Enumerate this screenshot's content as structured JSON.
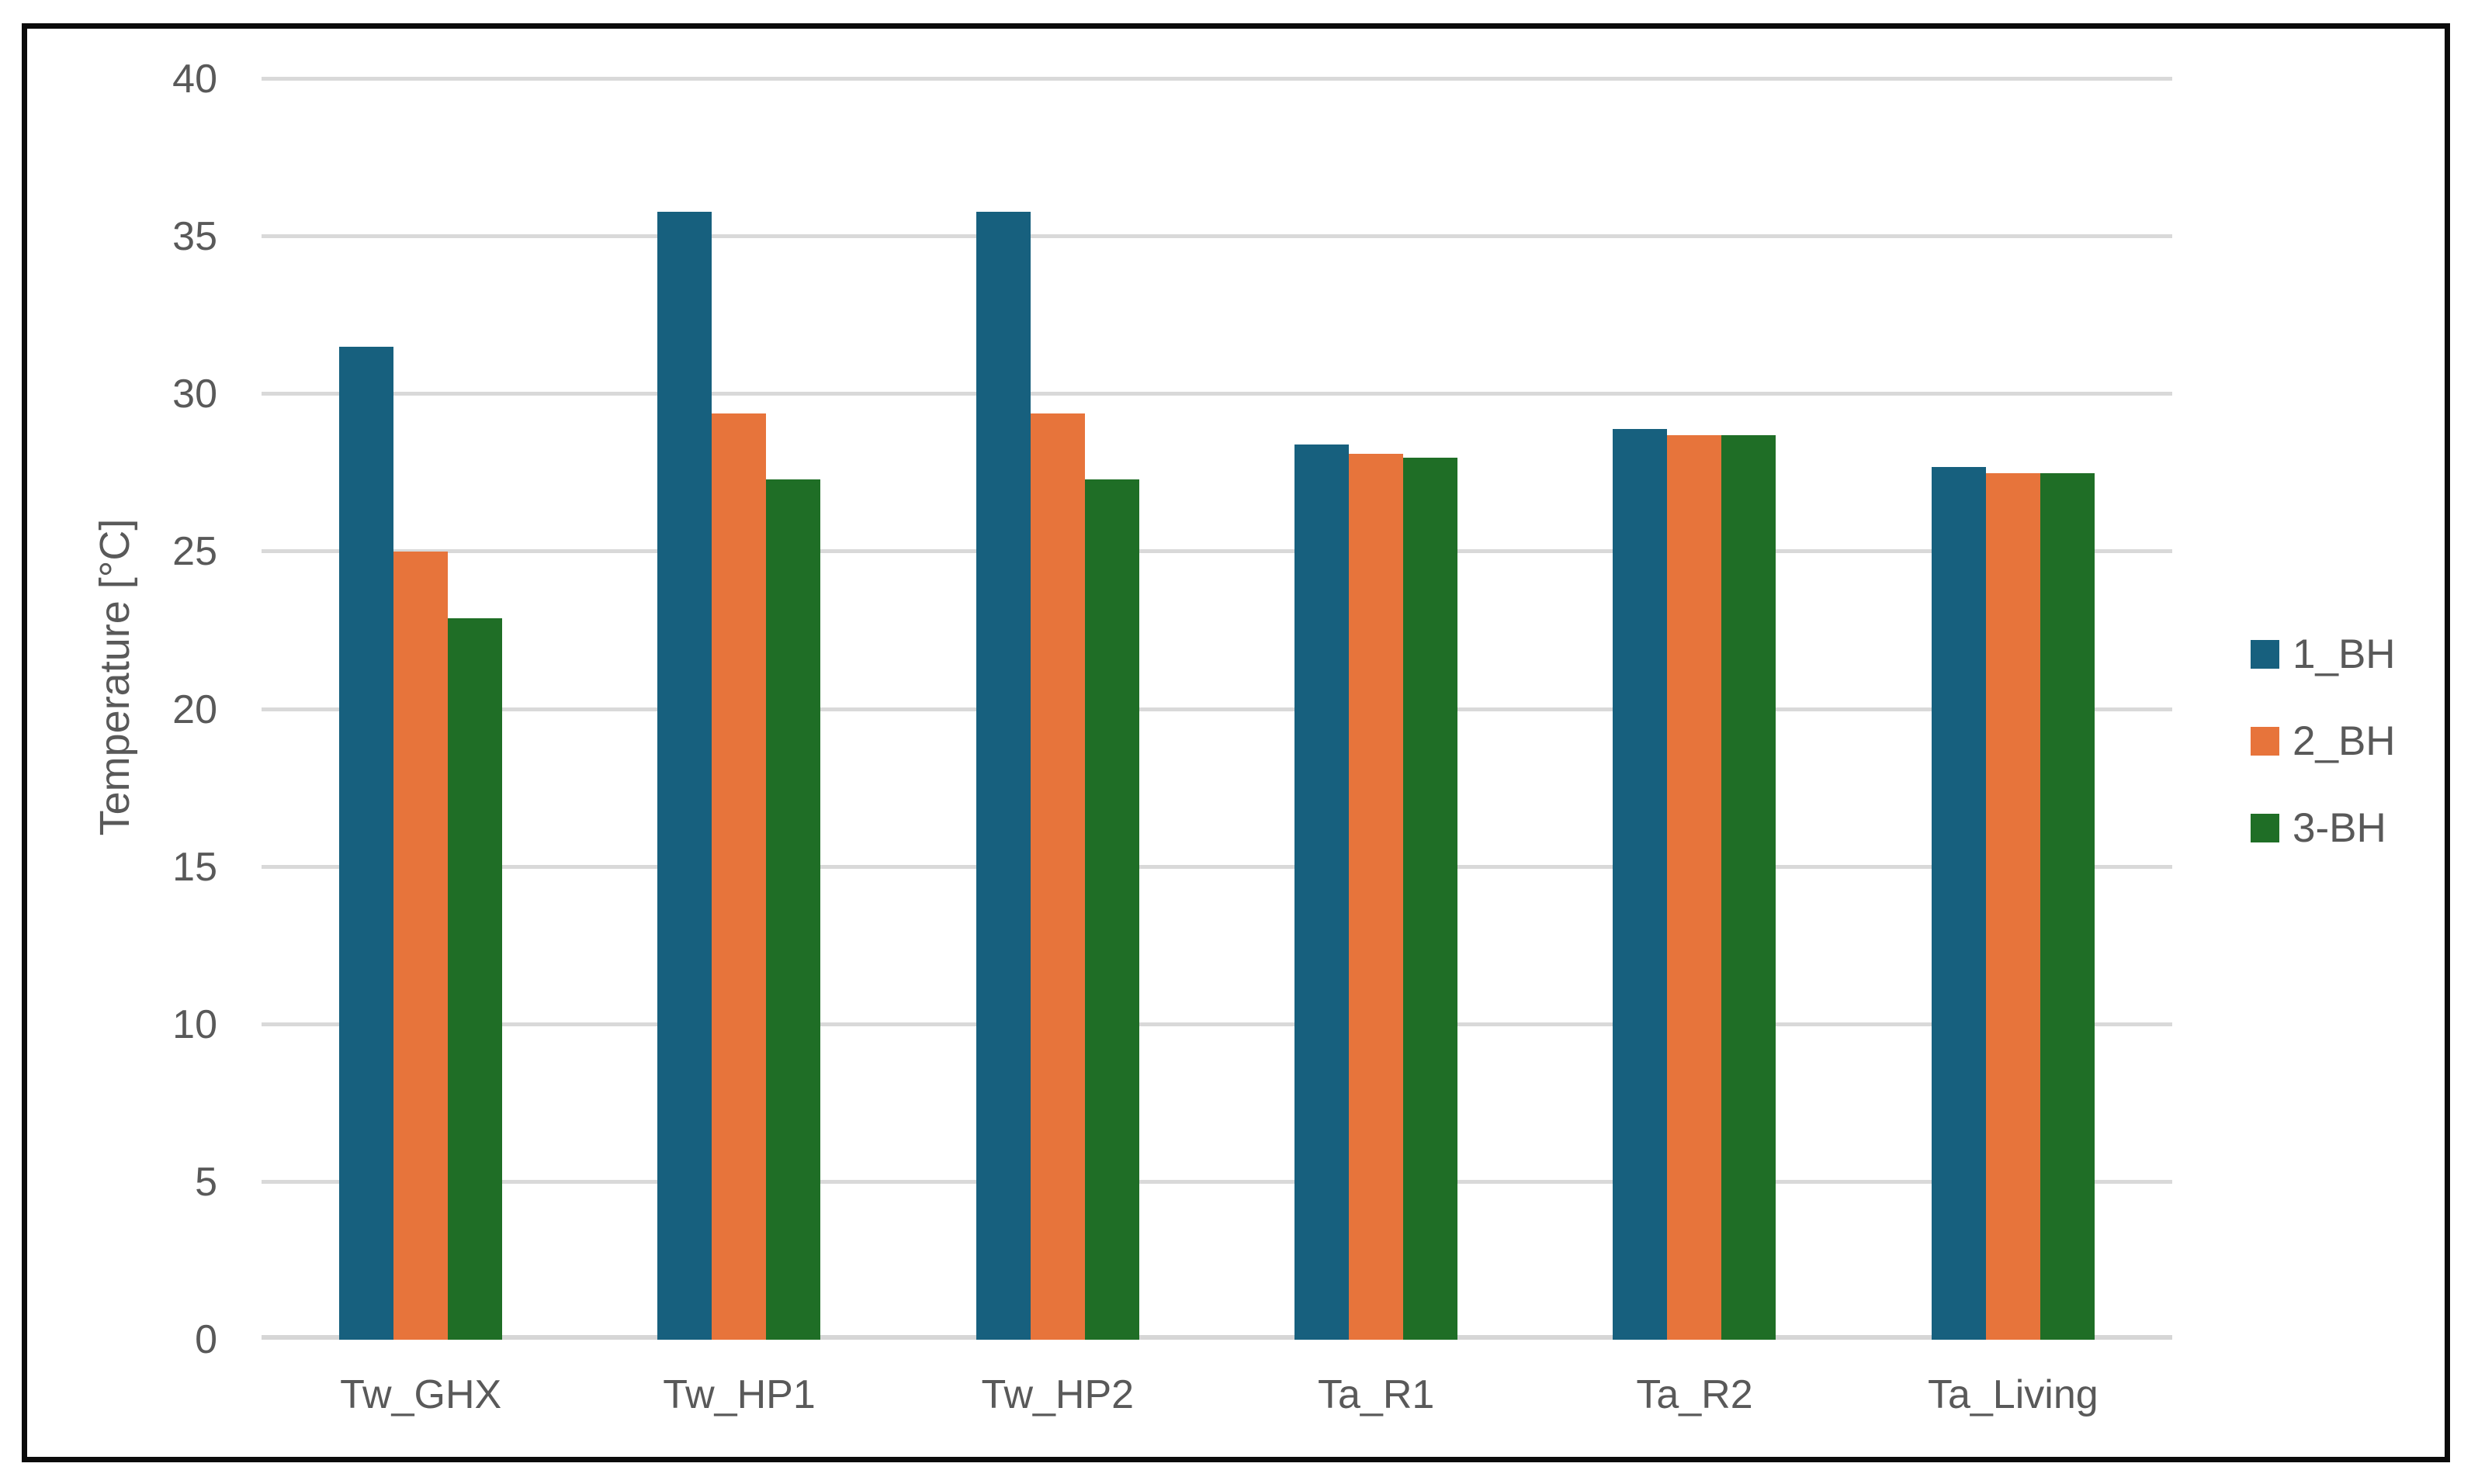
{
  "chart_data": {
    "type": "bar",
    "title": "",
    "categories": [
      "Tw_GHX",
      "Tw_HP1",
      "Tw_HP2",
      "Ta_R1",
      "Ta_R2",
      "Ta_Living"
    ],
    "series": [
      {
        "name": "1_BH",
        "color": "#17607E",
        "values": [
          31.5,
          35.8,
          35.8,
          28.4,
          28.9,
          27.7
        ]
      },
      {
        "name": "2_BH",
        "color": "#E7743B",
        "values": [
          25.0,
          29.4,
          29.4,
          28.1,
          28.7,
          27.5
        ]
      },
      {
        "name": "3-BH",
        "color": "#1F6E26",
        "values": [
          22.9,
          27.3,
          27.3,
          28.0,
          28.7,
          27.5
        ]
      }
    ],
    "xlabel": "",
    "ylabel": "Temperature [°C]",
    "ylim": [
      0,
      40
    ],
    "yticks": [
      0,
      5,
      10,
      15,
      20,
      25,
      30,
      35,
      40
    ],
    "grid": true,
    "legend_position": "right"
  },
  "style_colors": {
    "gridline": "#d9d9d9",
    "axis_text": "#595959",
    "frame_border": "#0b0b0b",
    "background": "#ffffff"
  }
}
